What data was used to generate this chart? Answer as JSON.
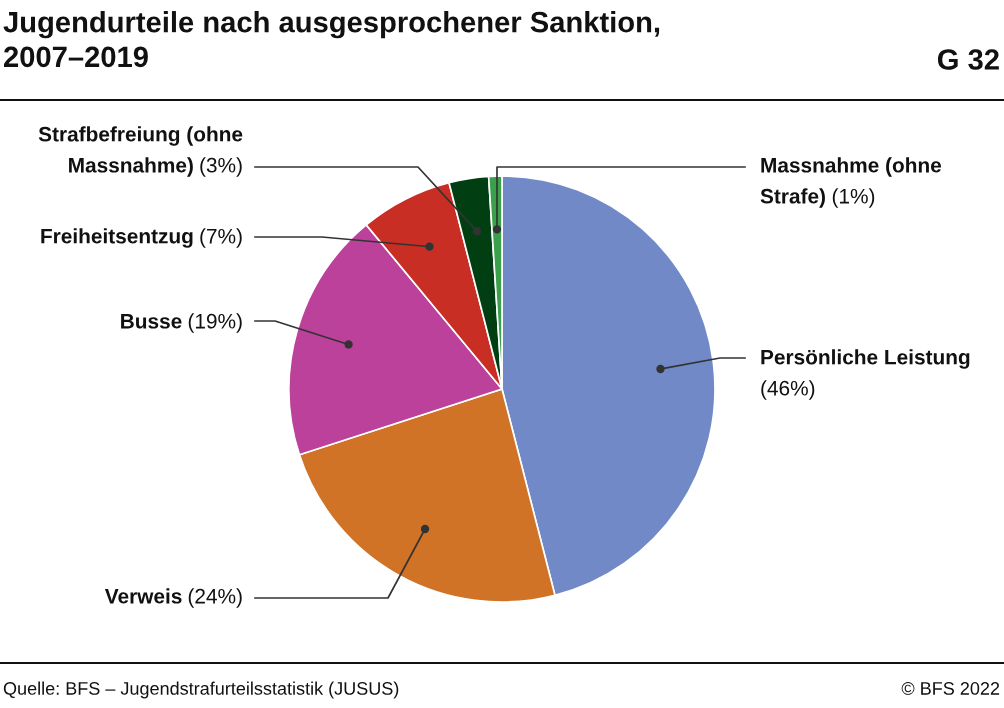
{
  "chart_data": {
    "type": "pie",
    "title": "Jugendurteile nach ausgesprochener Sanktion,\n2007–2019",
    "categories": [
      "Persönliche Leistung",
      "Verweis",
      "Busse",
      "Freiheitsentzug",
      "Strafbefreiung (ohne\nMassnahme)",
      "Massnahme (ohne\nStrafe)"
    ],
    "values": [
      46,
      24,
      19,
      7,
      3,
      1
    ],
    "colors": [
      "#7289c8",
      "#d07326",
      "#bb419a",
      "#c92e25",
      "#013f13",
      "#3aa04c"
    ],
    "value_labels": [
      "(46%)",
      "(24%)",
      "(19%)",
      "(7%)",
      "(3%)",
      "(1%)"
    ],
    "annotations": [
      "G 32",
      "Quelle: BFS – Jugendstrafurteilsstatistik (JUSUS)",
      "© BFS 2022"
    ]
  }
}
